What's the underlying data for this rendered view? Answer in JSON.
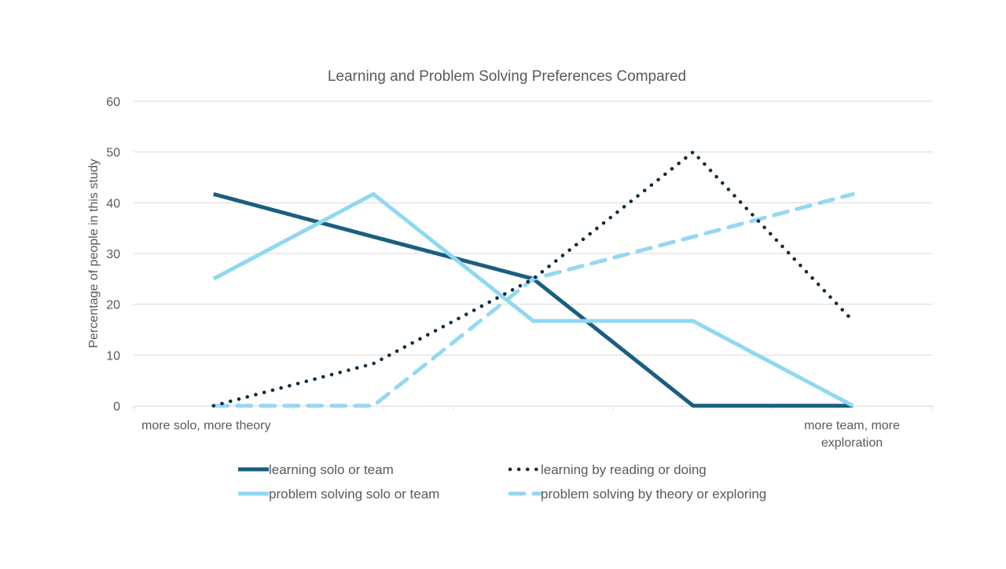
{
  "chart_data": {
    "type": "line",
    "title": "Learning and Problem Solving Preferences Compared",
    "xlabel": "",
    "ylabel": "Percentage of people in this study",
    "ylim": [
      0,
      60
    ],
    "yticks": [
      0,
      10,
      20,
      30,
      40,
      50,
      60
    ],
    "x_tick_count": 5,
    "x_end_labels": {
      "left": [
        "more solo, more theory"
      ],
      "right": [
        "more team, more",
        "exploration"
      ]
    },
    "x": [
      1,
      2,
      3,
      4,
      5
    ],
    "grid": true,
    "legend_position": "bottom",
    "series": [
      {
        "name": "learning solo or team",
        "values": [
          41.7,
          33.3,
          25.0,
          0,
          0
        ],
        "color": "#1A5E80",
        "style": "solid"
      },
      {
        "name": "learning by reading or doing",
        "values": [
          0,
          8.3,
          25.0,
          50.0,
          16.7
        ],
        "color": "#0E2B3F",
        "style": "dotted"
      },
      {
        "name": "problem solving solo or team",
        "values": [
          25.0,
          41.7,
          16.7,
          16.7,
          0
        ],
        "color": "#8FD8F2",
        "style": "solid"
      },
      {
        "name": "problem solving by theory or exploring",
        "values": [
          0,
          0,
          25.0,
          33.3,
          41.7
        ],
        "color": "#95D8F0",
        "style": "dashed"
      }
    ]
  },
  "colors": {
    "grid": "#D9D9D9",
    "axis": "#D9D9D9",
    "text": "#595959"
  }
}
